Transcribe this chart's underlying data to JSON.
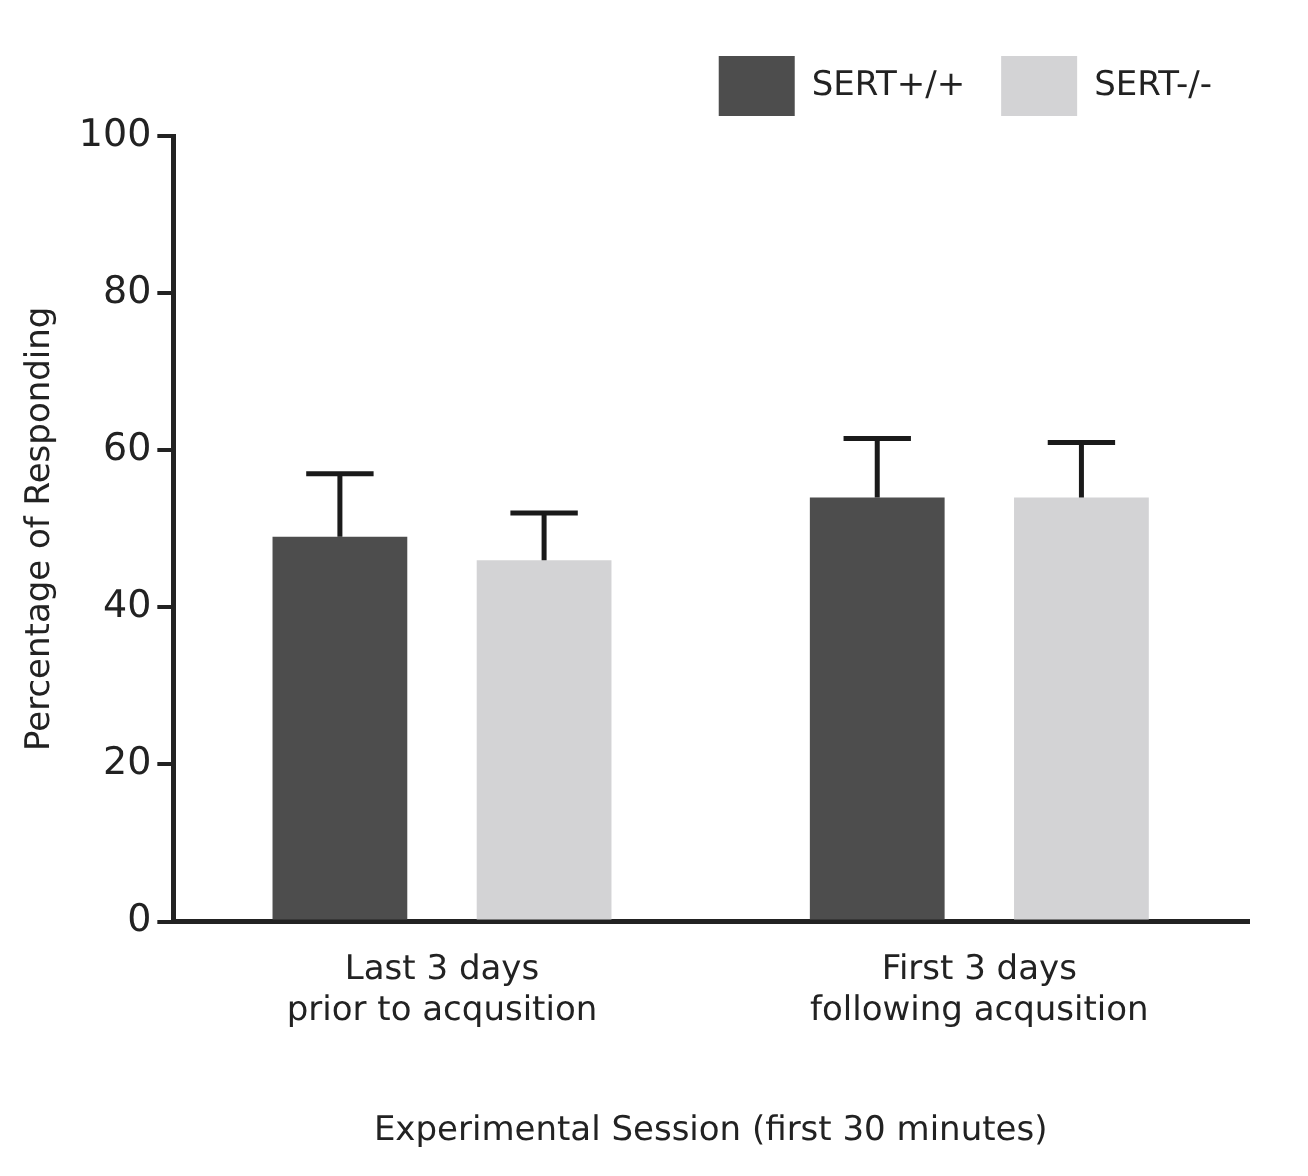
{
  "chart_data": {
    "type": "bar",
    "ylabel": "Percentage of Responding",
    "xlabel": "Experimental Session (first 30 minutes)",
    "categories": [
      "Last 3 days\nprior to acqusition",
      "First 3 days\nfollowing acqusition"
    ],
    "series": [
      {
        "name": "SERT+/+",
        "color": "#4d4d4d",
        "values": [
          49,
          54
        ],
        "errors": [
          [
            49,
            57
          ],
          [
            54,
            61.5
          ]
        ]
      },
      {
        "name": "SERT-/-",
        "color": "#d3d3d5",
        "values": [
          46,
          54
        ],
        "errors": [
          [
            46,
            52
          ],
          [
            54,
            61
          ]
        ]
      }
    ],
    "ylim": [
      0,
      100
    ],
    "yticks": [
      0,
      20,
      40,
      60,
      80,
      100
    ],
    "grid": false,
    "legend": "top right"
  }
}
